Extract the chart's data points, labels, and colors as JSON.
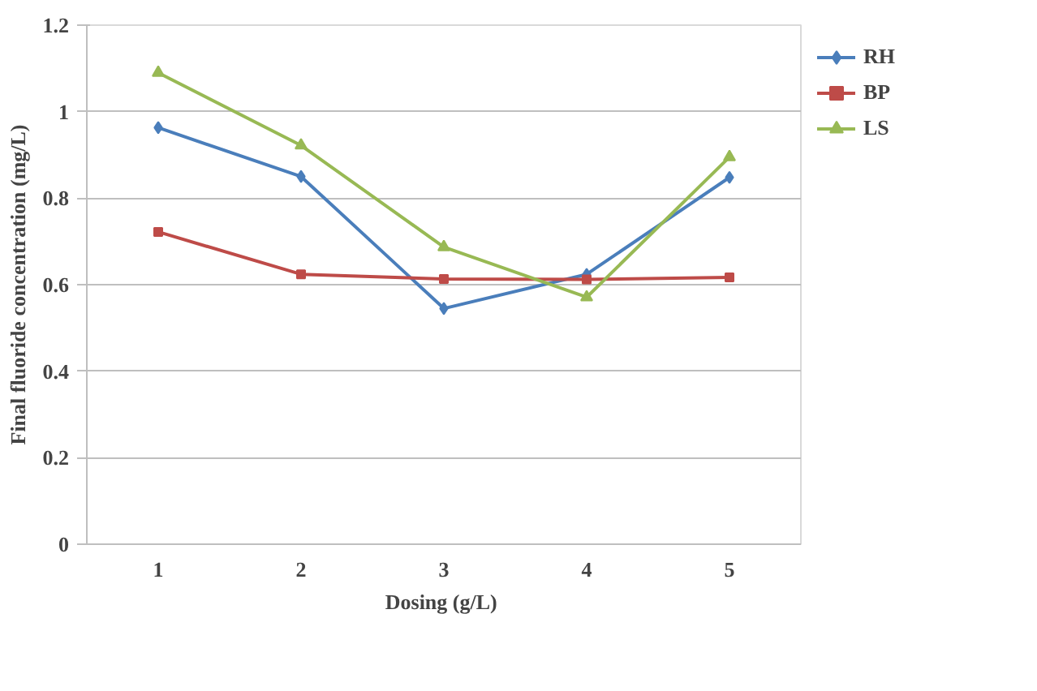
{
  "chart_data": {
    "type": "line",
    "xlabel": "Dosing  (g/L)",
    "ylabel": "Final fluoride concentration (mg/L)",
    "categories": [
      "1",
      "2",
      "3",
      "4",
      "5"
    ],
    "series": [
      {
        "name": "RH",
        "color": "#4a7ebb",
        "marker": "diamond",
        "values": [
          0.963,
          0.85,
          0.545,
          0.624,
          0.848
        ]
      },
      {
        "name": "BP",
        "color": "#be4b48",
        "marker": "square",
        "values": [
          0.722,
          0.624,
          0.613,
          0.612,
          0.617
        ]
      },
      {
        "name": "LS",
        "color": "#98b954",
        "marker": "triangle",
        "values": [
          1.09,
          0.922,
          0.687,
          0.571,
          0.895
        ]
      }
    ],
    "ylim": [
      0,
      1.2
    ],
    "yticks": [
      0,
      0.2,
      0.4,
      0.6,
      0.8,
      1,
      1.2
    ],
    "grid": "y",
    "legend": "right"
  }
}
